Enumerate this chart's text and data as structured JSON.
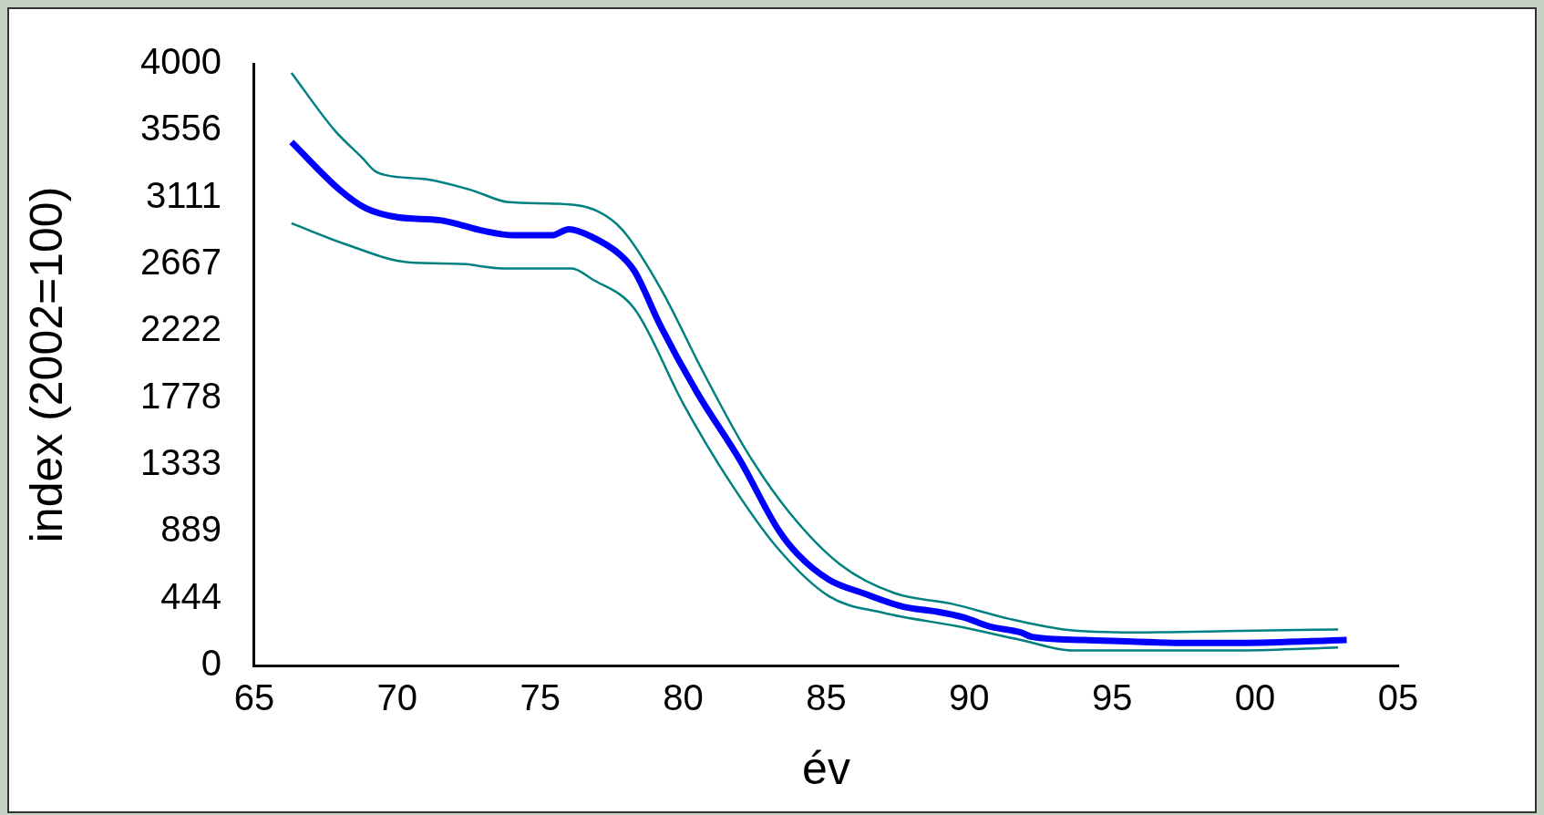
{
  "chart_data": {
    "type": "line",
    "xlabel": "év",
    "ylabel": "index (2002=100)",
    "xlim": [
      1965,
      2005
    ],
    "xticks": [
      {
        "value": 1965,
        "label": "65"
      },
      {
        "value": 1970,
        "label": "70"
      },
      {
        "value": 1975,
        "label": "75"
      },
      {
        "value": 1980,
        "label": "80"
      },
      {
        "value": 1985,
        "label": "85"
      },
      {
        "value": 1990,
        "label": "90"
      },
      {
        "value": 1995,
        "label": "95"
      },
      {
        "value": 2000,
        "label": "00"
      },
      {
        "value": 2005,
        "label": "05"
      }
    ],
    "ylim": [
      0,
      4000
    ],
    "yticks": [
      0,
      444,
      889,
      1333,
      1778,
      2222,
      2667,
      3111,
      3556,
      4000
    ],
    "grid": false,
    "legend": false,
    "marker": "none",
    "line_style": "solid",
    "series": [
      {
        "color": "#0000ff",
        "x": [
          1966.3,
          1968.0,
          1968.9,
          1970.0,
          1971.5,
          1972.2,
          1973.0,
          1974.1,
          1975.4,
          1976.0,
          1976.8,
          1977.8,
          1978.3,
          1979.2,
          1980.5,
          1982.0,
          1983.3,
          1984.0,
          1985.1,
          1986.3,
          1987.7,
          1988.8,
          1989.8,
          1990.7,
          1991.8,
          1992.2,
          1994.0,
          1997.7,
          1999.5,
          2003.2
        ],
        "values": [
          3480,
          3160,
          3040,
          2980,
          2960,
          2930,
          2890,
          2860,
          2860,
          2900,
          2850,
          2730,
          2620,
          2260,
          1810,
          1360,
          910,
          740,
          570,
          480,
          390,
          360,
          320,
          260,
          220,
          190,
          170,
          150,
          150,
          170
        ]
      },
      {
        "color": "#008080",
        "x": [
          1966.3,
          1967.8,
          1968.8,
          1969.2,
          1969.6,
          1971.1,
          1972.6,
          1973.9,
          1975.6,
          1977.0,
          1977.9,
          1979.2,
          1980.7,
          1982.2,
          1983.7,
          1985.5,
          1987.4,
          1989.4,
          1991.4,
          1993.3,
          1995.8,
          1999.5,
          2002.9
        ],
        "values": [
          3940,
          3560,
          3370,
          3290,
          3260,
          3230,
          3160,
          3080,
          3070,
          3020,
          2890,
          2510,
          1950,
          1430,
          1020,
          670,
          480,
          410,
          310,
          240,
          220,
          230,
          240
        ]
      },
      {
        "color": "#008080",
        "x": [
          1966.3,
          1968.2,
          1970.4,
          1972.2,
          1973.7,
          1976.1,
          1976.8,
          1978.3,
          1980.0,
          1981.5,
          1983.3,
          1985.1,
          1987.0,
          1989.6,
          1991.8,
          1993.6,
          1995.8,
          1999.5,
          2002.9
        ],
        "values": [
          2940,
          2800,
          2680,
          2670,
          2640,
          2640,
          2570,
          2370,
          1740,
          1260,
          780,
          460,
          350,
          260,
          170,
          100,
          100,
          100,
          120
        ]
      }
    ]
  }
}
